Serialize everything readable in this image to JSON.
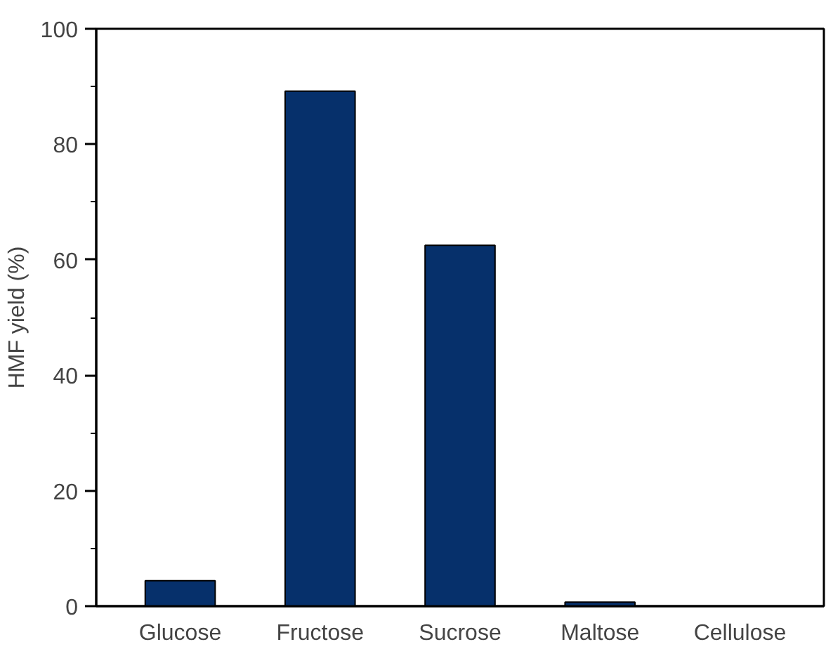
{
  "chart_data": {
    "type": "bar",
    "ylabel": "HMF yield (%)",
    "categories": [
      "Glucose",
      "Fructose",
      "Sucrose",
      "Maltose",
      "Cellulose"
    ],
    "values": [
      4.4,
      89.2,
      62.5,
      0.7,
      0
    ],
    "color": "#06306b",
    "ylim": [
      0,
      100
    ],
    "yticks": [
      0,
      20,
      40,
      60,
      80,
      100
    ],
    "grid": false
  }
}
